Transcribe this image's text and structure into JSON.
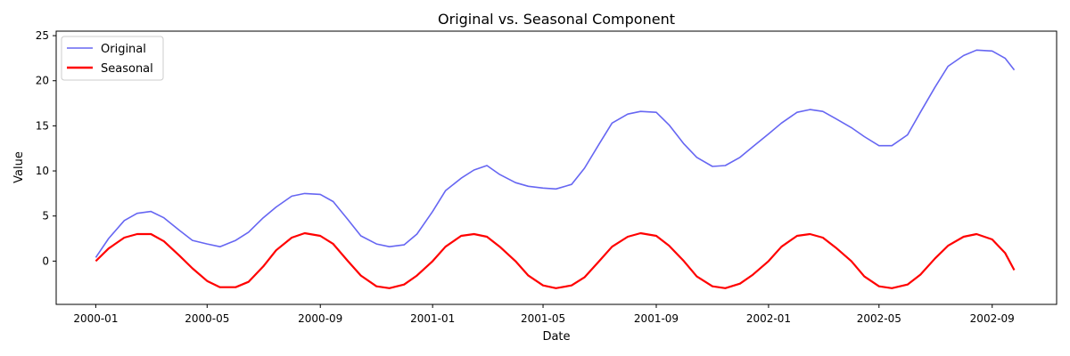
{
  "chart_data": {
    "type": "line",
    "title": "Original vs. Seasonal Component",
    "xlabel": "Date",
    "ylabel": "Value",
    "xlim": [
      "1999-11-19",
      "2002-11-10"
    ],
    "ylim": [
      -4.8,
      25.5
    ],
    "yticks": [
      0,
      5,
      10,
      15,
      20,
      25
    ],
    "xticks": [
      "2000-01-01",
      "2000-05-01",
      "2000-09-01",
      "2001-01-01",
      "2001-05-01",
      "2001-09-01",
      "2002-01-01",
      "2002-05-01",
      "2002-09-01"
    ],
    "xtick_labels": [
      "2000-01",
      "2000-05",
      "2000-09",
      "2001-01",
      "2001-05",
      "2001-09",
      "2002-01",
      "2002-05",
      "2002-09"
    ],
    "grid": false,
    "legend": "top-left",
    "series": [
      {
        "name": "Original",
        "color": "#6666f2",
        "x": [
          "2000-01-01",
          "2000-01-15",
          "2000-02-01",
          "2000-02-15",
          "2000-03-01",
          "2000-03-15",
          "2000-04-01",
          "2000-04-15",
          "2000-05-01",
          "2000-05-15",
          "2000-06-01",
          "2000-06-15",
          "2000-07-01",
          "2000-07-15",
          "2000-08-01",
          "2000-08-15",
          "2000-09-01",
          "2000-09-15",
          "2000-10-01",
          "2000-10-15",
          "2000-11-01",
          "2000-11-15",
          "2000-12-01",
          "2000-12-15",
          "2001-01-01",
          "2001-01-15",
          "2001-02-01",
          "2001-02-15",
          "2001-03-01",
          "2001-03-15",
          "2001-04-01",
          "2001-04-15",
          "2001-05-01",
          "2001-05-15",
          "2001-06-01",
          "2001-06-15",
          "2001-07-01",
          "2001-07-15",
          "2001-08-01",
          "2001-08-15",
          "2001-09-01",
          "2001-09-15",
          "2001-10-01",
          "2001-10-15",
          "2001-11-01",
          "2001-11-15",
          "2001-12-01",
          "2001-12-15",
          "2002-01-01",
          "2002-01-15",
          "2002-02-01",
          "2002-02-15",
          "2002-03-01",
          "2002-03-15",
          "2002-04-01",
          "2002-04-15",
          "2002-05-01",
          "2002-05-15",
          "2002-06-01",
          "2002-06-15",
          "2002-07-01",
          "2002-07-15",
          "2002-08-01",
          "2002-08-15",
          "2002-09-01",
          "2002-09-15",
          "2002-09-25"
        ],
        "values": [
          0.4,
          2.5,
          4.5,
          5.3,
          5.5,
          4.8,
          3.4,
          2.3,
          1.9,
          1.6,
          2.3,
          3.2,
          4.8,
          6.0,
          7.2,
          7.5,
          7.4,
          6.6,
          4.6,
          2.8,
          1.9,
          1.6,
          1.8,
          3.0,
          5.5,
          7.8,
          9.2,
          10.1,
          10.6,
          9.6,
          8.7,
          8.3,
          8.1,
          8.0,
          8.5,
          10.3,
          13.0,
          15.3,
          16.3,
          16.6,
          16.5,
          15.1,
          13.0,
          11.5,
          10.5,
          10.6,
          11.5,
          12.7,
          14.1,
          15.3,
          16.5,
          16.8,
          16.6,
          15.8,
          14.8,
          13.8,
          12.8,
          12.8,
          14.0,
          16.5,
          19.3,
          21.6,
          22.8,
          23.4,
          23.3,
          22.5,
          21.2
        ]
      },
      {
        "name": "Seasonal",
        "color": "#ff0000",
        "x": [
          "2000-01-01",
          "2000-01-15",
          "2000-02-01",
          "2000-02-15",
          "2000-03-01",
          "2000-03-15",
          "2000-04-01",
          "2000-04-15",
          "2000-05-01",
          "2000-05-15",
          "2000-06-01",
          "2000-06-15",
          "2000-07-01",
          "2000-07-15",
          "2000-08-01",
          "2000-08-15",
          "2000-09-01",
          "2000-09-15",
          "2000-10-01",
          "2000-10-15",
          "2000-11-01",
          "2000-11-15",
          "2000-12-01",
          "2000-12-15",
          "2001-01-01",
          "2001-01-15",
          "2001-02-01",
          "2001-02-15",
          "2001-03-01",
          "2001-03-15",
          "2001-04-01",
          "2001-04-15",
          "2001-05-01",
          "2001-05-15",
          "2001-06-01",
          "2001-06-15",
          "2001-07-01",
          "2001-07-15",
          "2001-08-01",
          "2001-08-15",
          "2001-09-01",
          "2001-09-15",
          "2001-10-01",
          "2001-10-15",
          "2001-11-01",
          "2001-11-15",
          "2001-12-01",
          "2001-12-15",
          "2002-01-01",
          "2002-01-15",
          "2002-02-01",
          "2002-02-15",
          "2002-03-01",
          "2002-03-15",
          "2002-04-01",
          "2002-04-15",
          "2002-05-01",
          "2002-05-15",
          "2002-06-01",
          "2002-06-15",
          "2002-07-01",
          "2002-07-15",
          "2002-08-01",
          "2002-08-15",
          "2002-09-01",
          "2002-09-15",
          "2002-09-25"
        ],
        "values": [
          0.0,
          1.4,
          2.6,
          3.0,
          3.0,
          2.2,
          0.6,
          -0.8,
          -2.2,
          -2.9,
          -2.9,
          -2.3,
          -0.6,
          1.2,
          2.6,
          3.1,
          2.8,
          1.9,
          0.0,
          -1.6,
          -2.8,
          -3.0,
          -2.6,
          -1.6,
          0.0,
          1.6,
          2.8,
          3.0,
          2.7,
          1.6,
          0.0,
          -1.6,
          -2.7,
          -3.0,
          -2.7,
          -1.8,
          0.0,
          1.6,
          2.7,
          3.1,
          2.8,
          1.7,
          0.0,
          -1.7,
          -2.8,
          -3.0,
          -2.5,
          -1.5,
          0.0,
          1.6,
          2.8,
          3.0,
          2.6,
          1.5,
          0.0,
          -1.7,
          -2.8,
          -3.0,
          -2.6,
          -1.5,
          0.3,
          1.7,
          2.7,
          3.0,
          2.4,
          0.9,
          -1.0
        ]
      }
    ]
  }
}
